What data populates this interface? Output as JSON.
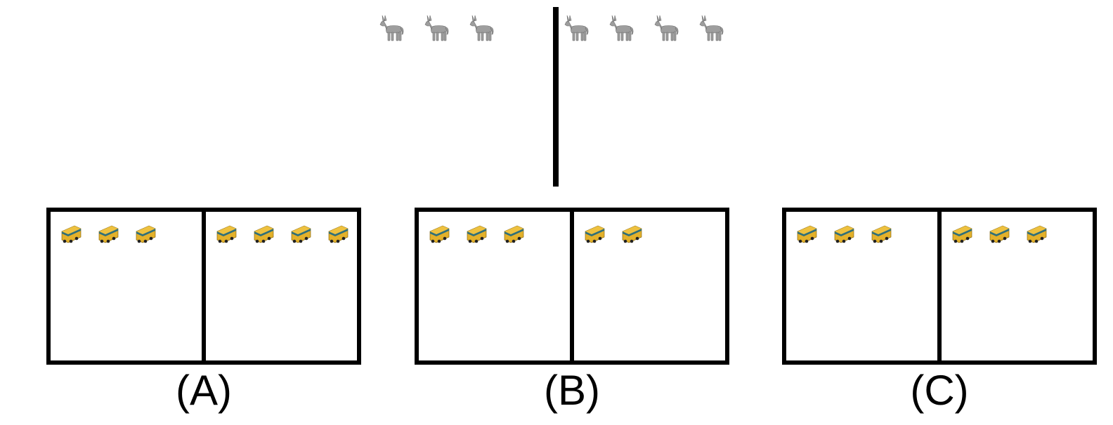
{
  "top_groups": {
    "left": {
      "icon": "donkey-icon",
      "count": 3
    },
    "right": {
      "icon": "donkey-icon",
      "count": 4
    }
  },
  "options": [
    {
      "label": "(A)",
      "left_count": 3,
      "right_count": 4,
      "icon": "bus-icon"
    },
    {
      "label": "(B)",
      "left_count": 3,
      "right_count": 2,
      "icon": "bus-icon"
    },
    {
      "label": "(C)",
      "left_count": 3,
      "right_count": 3,
      "icon": "bus-icon"
    }
  ],
  "colors": {
    "donkey": "#9e9e9e",
    "bus_body": "#e3b12b",
    "bus_window": "#2f6f7a",
    "lines": "#000000"
  }
}
